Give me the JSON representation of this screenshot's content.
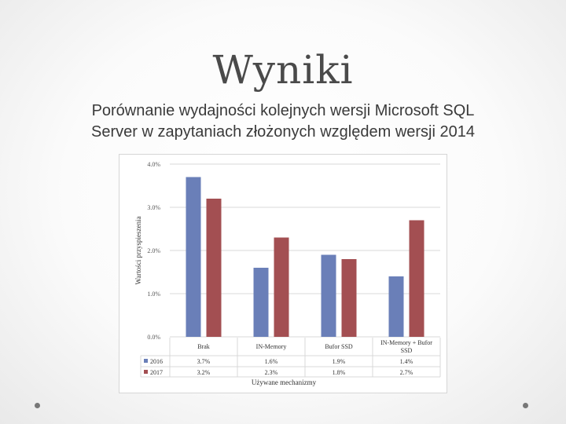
{
  "slide": {
    "title": "Wyniki",
    "subtitle_line1": "Porównanie wydajności kolejnych wersji Microsoft SQL",
    "subtitle_line2": "Server w zapytaniach złożonych względem wersji 2014"
  },
  "chart_data": {
    "type": "bar",
    "title": "",
    "xlabel": "Używane mechanizmy",
    "ylabel": "Wartości przyspieszenia",
    "ylim": [
      0,
      4
    ],
    "y_ticks": [
      0,
      1,
      2,
      3,
      4
    ],
    "y_tick_labels": [
      "0.0%",
      "1.0%",
      "2.0%",
      "3.0%",
      "4.0%"
    ],
    "grid": true,
    "legend_placement": "data-table",
    "categories": [
      [
        "Brak"
      ],
      [
        "IN-Memory"
      ],
      [
        "Bufor SSD"
      ],
      [
        "IN-Memory + Bufor",
        "SSD"
      ]
    ],
    "series": [
      {
        "name": "2016",
        "color": "#6a7fb8",
        "values": [
          3.7,
          1.6,
          1.9,
          1.4
        ],
        "labels": [
          "3.7%",
          "1.6%",
          "1.9%",
          "1.4%"
        ]
      },
      {
        "name": "2017",
        "color": "#a34f52",
        "values": [
          3.2,
          2.3,
          1.8,
          2.7
        ],
        "labels": [
          "3.2%",
          "2.3%",
          "1.8%",
          "2.7%"
        ]
      }
    ]
  }
}
